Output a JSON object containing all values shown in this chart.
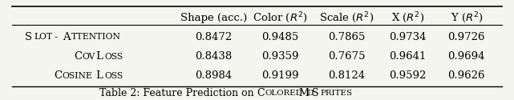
{
  "col_headers": [
    "Shape (acc.)",
    "Color ($R^2$)",
    "Scale ($R^2$)",
    "X ($R^2$)",
    "Y ($R^2$)"
  ],
  "row_labels": [
    "S\\textsc{lot}-A\\textsc{ttention}",
    "C\\textsc{ov}L\\textsc{oss}",
    "C\\textsc{osine}L\\textsc{oss}"
  ],
  "row_labels_display": [
    "Slot-Attention",
    "CovLoss",
    "CosineLoss"
  ],
  "row_labels_style": [
    "smallcaps",
    "smallcaps",
    "smallcaps"
  ],
  "data": [
    [
      0.8472,
      0.9485,
      0.7865,
      0.9734,
      0.9726
    ],
    [
      0.8438,
      0.9359,
      0.7675,
      0.9641,
      0.9694
    ],
    [
      0.8984,
      0.9199,
      0.8124,
      0.9592,
      0.9626
    ]
  ],
  "caption": "Table 2: Feature Prediction on ColoredMdSprites",
  "caption_display": "Table 2: Feature Prediction on \\textsc{Colored}M\\textsc{d}S\\textsc{prites}",
  "bg_color": "#f5f5f0",
  "header_line_color": "#000000",
  "bottom_line_color": "#000000",
  "font_size": 9.5,
  "caption_font_size": 9.0
}
